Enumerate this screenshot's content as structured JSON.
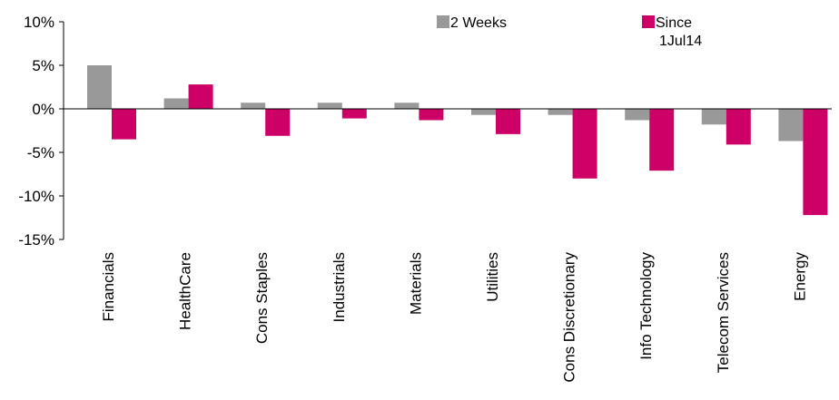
{
  "chart_data": {
    "type": "bar",
    "categories": [
      "Financials",
      "HealthCare",
      "Cons Staples",
      "Industrials",
      "Materials",
      "Utilities",
      "Cons Discretionary",
      "Info Technology",
      "Telecom Services",
      "Energy"
    ],
    "series": [
      {
        "name": "2 Weeks",
        "color": "#999999",
        "values": [
          5.0,
          1.2,
          0.7,
          0.7,
          0.7,
          -0.7,
          -0.7,
          -1.3,
          -1.8,
          -3.7
        ]
      },
      {
        "name": "Since 1Jul14",
        "color": "#cc0066",
        "values": [
          -3.5,
          2.8,
          -3.1,
          -1.1,
          -1.3,
          -2.9,
          -8.0,
          -7.1,
          -4.1,
          -12.2
        ]
      }
    ],
    "ylim": [
      -15,
      10
    ],
    "yticks": [
      10,
      5,
      0,
      -5,
      -10,
      -15
    ],
    "ytick_labels": [
      "10%",
      "5%",
      "0%",
      "-5%",
      "-10%",
      "-15%"
    ],
    "legend": {
      "position": "top-right",
      "entries": [
        {
          "lines": [
            "2 Weeks"
          ]
        },
        {
          "lines": [
            "Since",
            "1Jul14"
          ]
        }
      ]
    },
    "grid": false,
    "title": "",
    "xlabel": "",
    "ylabel": ""
  }
}
